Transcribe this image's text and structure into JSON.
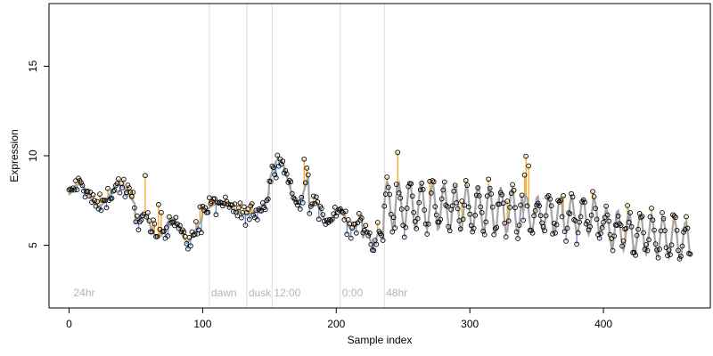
{
  "chart_data": {
    "type": "scatter",
    "title": "",
    "xlabel": "Sample index",
    "ylabel": "Expression",
    "xlim": [
      -15,
      480
    ],
    "ylim": [
      1.5,
      18.5
    ],
    "xticks": [
      0,
      100,
      200,
      300,
      400
    ],
    "yticks": [
      5,
      10,
      15
    ],
    "grid": false,
    "legend": "none",
    "colors": {
      "points": "#000000",
      "fit_line": "#a6a6a6",
      "residual_positive": "#f5a623",
      "residual_negative": "#5b8fe0",
      "markers": "#dcdcdc",
      "annotation_text": "#b5b5b5"
    },
    "markers": [
      {
        "x": 105,
        "label": "dawn"
      },
      {
        "x": 133,
        "label": "dusk"
      },
      {
        "x": 152,
        "label": "12:00"
      },
      {
        "x": 203,
        "label": "0:00"
      },
      {
        "x": 236,
        "label": "48hr"
      }
    ],
    "annotations": [
      {
        "x": 2,
        "label": "24hr"
      }
    ],
    "annotation_y": 2.0,
    "segments": [
      {
        "x0": 0,
        "x1": 50,
        "base": 7.8,
        "amp": 0.6,
        "period": 30,
        "trend": 0.0
      },
      {
        "x0": 50,
        "x1": 100,
        "base": 6.2,
        "amp": 0.6,
        "period": 22,
        "trend": -0.01
      },
      {
        "x0": 100,
        "x1": 150,
        "base": 6.8,
        "amp": 0.4,
        "period": 45,
        "trend": 0.01
      },
      {
        "x0": 150,
        "x1": 180,
        "base": 8.6,
        "amp": 1.2,
        "period": 28,
        "trend": 0.0
      },
      {
        "x0": 180,
        "x1": 220,
        "base": 7.0,
        "amp": 0.5,
        "period": 18,
        "trend": -0.02
      },
      {
        "x0": 220,
        "x1": 236,
        "base": 5.4,
        "amp": 0.4,
        "period": 10,
        "trend": 0.0
      },
      {
        "x0": 236,
        "x1": 340,
        "base": 7.3,
        "amp": 1.3,
        "period": 8.5,
        "trend": -0.004
      },
      {
        "x0": 340,
        "x1": 400,
        "base": 6.8,
        "amp": 1.0,
        "period": 8.5,
        "trend": -0.004
      },
      {
        "x0": 400,
        "x1": 466,
        "base": 6.0,
        "amp": 1.1,
        "period": 8.5,
        "trend": -0.012
      }
    ],
    "n_points": 466
  }
}
